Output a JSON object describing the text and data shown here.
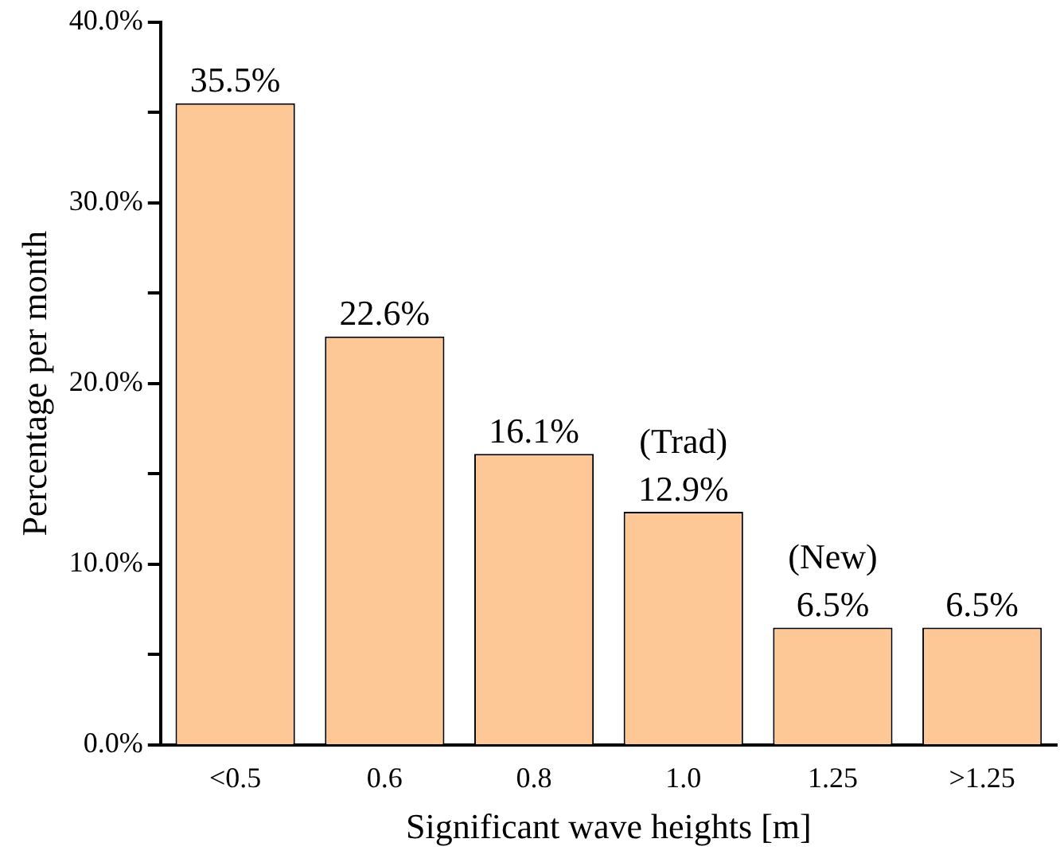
{
  "chart_data": {
    "type": "bar",
    "xlabel": "Significant wave heights [m]",
    "ylabel": "Percentage per month",
    "categories": [
      "<0.5",
      "0.6",
      "0.8",
      "1.0",
      "1.25",
      ">1.25"
    ],
    "values": [
      35.5,
      22.6,
      16.1,
      12.9,
      6.5,
      6.5
    ],
    "value_labels": [
      "35.5%",
      "22.6%",
      "16.1%",
      "12.9%",
      "6.5%",
      "6.5%"
    ],
    "color": "#fdc896",
    "ylim": [
      0,
      40
    ],
    "yticks": [
      {
        "value": 0,
        "label": "0.0%"
      },
      {
        "value": 5,
        "label": null
      },
      {
        "value": 10,
        "label": "10.0%"
      },
      {
        "value": 15,
        "label": null
      },
      {
        "value": 20,
        "label": "20.0%"
      },
      {
        "value": 25,
        "label": null
      },
      {
        "value": 30,
        "label": "30.0%"
      },
      {
        "value": 35,
        "label": null
      },
      {
        "value": 40,
        "label": "40.0%"
      }
    ],
    "annotations": [
      {
        "text": "(Trad)",
        "x": "1.0",
        "y": 12.9
      },
      {
        "text": "(New)",
        "x": "1.25",
        "y": 6.5
      }
    ],
    "grid": false,
    "legend": false
  }
}
